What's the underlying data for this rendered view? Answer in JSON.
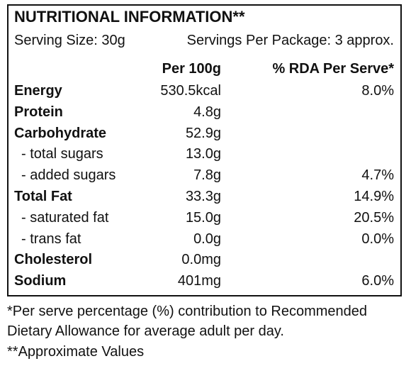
{
  "header": {
    "title": "NUTRITIONAL INFORMATION**",
    "serving_size": "Serving Size: 30g",
    "servings_per_package": "Servings Per Package: 3 approx."
  },
  "table": {
    "columns": [
      "Per 100g",
      "% RDA Per Serve*"
    ],
    "rows": [
      [
        "Energy",
        "530.5kcal",
        "8.0%"
      ],
      [
        "Protein",
        "4.8g",
        null
      ],
      [
        "Carbohydrate",
        "52.9g",
        null
      ],
      [
        "- total sugars",
        "13.0g",
        null
      ],
      [
        "- added sugars",
        "7.8g",
        "4.7%"
      ],
      [
        "Total Fat",
        "33.3g",
        "14.9%"
      ],
      [
        "- saturated fat",
        "15.0g",
        "20.5%"
      ],
      [
        "- trans fat",
        "0.0g",
        "0.0%"
      ],
      [
        "Cholesterol",
        "0.0mg",
        null
      ],
      [
        "Sodium",
        "401mg",
        "6.0%"
      ]
    ]
  },
  "footnotes": [
    "*Per serve percentage (%) contribution to Recommended",
    "Dietary Allowance for average adult per day.",
    "**Approximate Values"
  ]
}
